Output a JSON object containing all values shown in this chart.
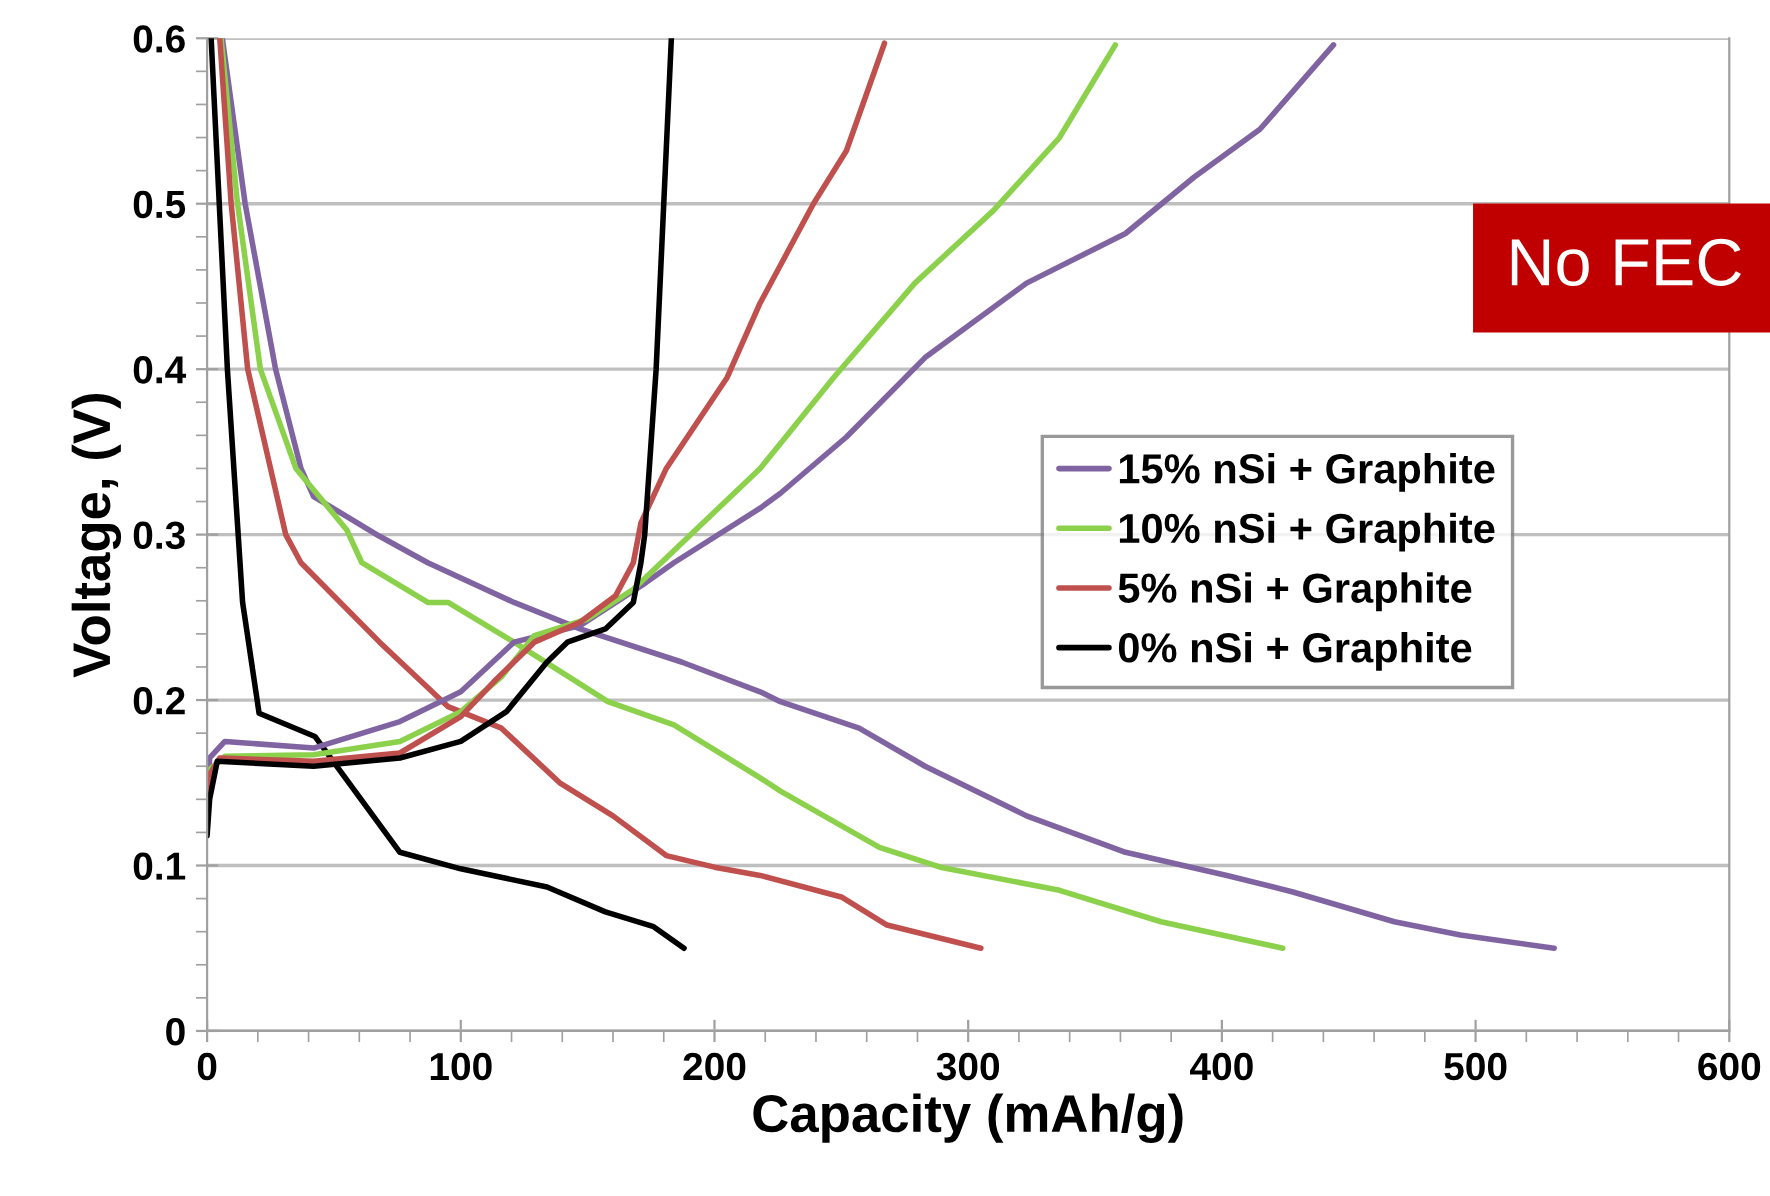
{
  "chart_data": {
    "type": "line",
    "xlabel": "Capacity (mAh/g)",
    "ylabel": "Voltage, (V)",
    "xlim": [
      0,
      600
    ],
    "ylim": [
      0,
      0.6
    ],
    "xticks": [
      0,
      100,
      200,
      300,
      400,
      500,
      600
    ],
    "yticks": [
      0,
      0.1,
      0.2,
      0.3,
      0.4,
      0.5,
      0.6
    ],
    "grid": "y",
    "legend": "right",
    "marker": "none",
    "line_style": "solid",
    "annotations": [
      "No FEC"
    ],
    "series": [
      {
        "name": "15% nSi + Graphite",
        "color": "#8064a2",
        "x": [
          6,
          15,
          27,
          37,
          42,
          68,
          87,
          121,
          147,
          187,
          218,
          226,
          257,
          283,
          323,
          362,
          402,
          428,
          468,
          494,
          531
        ],
        "values": [
          0.6,
          0.5,
          0.4,
          0.34,
          0.323,
          0.299,
          0.283,
          0.259,
          0.243,
          0.223,
          0.205,
          0.199,
          0.183,
          0.16,
          0.13,
          0.108,
          0.094,
          0.084,
          0.066,
          0.058,
          0.05
        ]
      },
      {
        "name": "10% nSi + Graphite",
        "color": "#8cd14b",
        "x": [
          5.5,
          12,
          21,
          35,
          55,
          61,
          87,
          95,
          121,
          158,
          184,
          218,
          226,
          265,
          289,
          336,
          376,
          424
        ],
        "values": [
          0.6,
          0.5,
          0.4,
          0.34,
          0.303,
          0.283,
          0.259,
          0.259,
          0.235,
          0.199,
          0.185,
          0.153,
          0.145,
          0.111,
          0.099,
          0.085,
          0.066,
          0.05
        ]
      },
      {
        "name": "5% nSi + Graphite",
        "color": "#c0504d",
        "x": [
          5,
          9.5,
          16,
          31,
          37,
          68,
          95,
          116,
          139,
          160,
          181,
          200,
          218,
          250,
          268,
          305
        ],
        "values": [
          0.6,
          0.5,
          0.4,
          0.3,
          0.283,
          0.235,
          0.196,
          0.183,
          0.15,
          0.13,
          0.106,
          0.099,
          0.094,
          0.081,
          0.064,
          0.05
        ]
      },
      {
        "name": "0% nSi + Graphite",
        "color": "#000000",
        "x": [
          1.6,
          8,
          14,
          20.5,
          42.5,
          76,
          100,
          134,
          157,
          176,
          188
        ],
        "values": [
          0.6,
          0.4,
          0.259,
          0.192,
          0.178,
          0.108,
          0.098,
          0.087,
          0.072,
          0.063,
          0.05
        ]
      },
      {
        "color": "#8064a2",
        "x": [
          0,
          1,
          7,
          42,
          76,
          100,
          121,
          147,
          173,
          184,
          218,
          226,
          252,
          283,
          323,
          362,
          389,
          415,
          444
        ],
        "values": [
          0.14,
          0.165,
          0.175,
          0.171,
          0.187,
          0.205,
          0.235,
          0.245,
          0.271,
          0.283,
          0.316,
          0.325,
          0.359,
          0.407,
          0.452,
          0.482,
          0.516,
          0.545,
          0.596
        ]
      },
      {
        "color": "#8cd14b",
        "x": [
          0,
          1,
          7,
          42,
          76,
          100,
          116,
          129,
          150,
          168,
          179,
          218,
          226,
          247,
          279,
          310,
          336,
          358
        ],
        "values": [
          0.13,
          0.158,
          0.166,
          0.167,
          0.175,
          0.193,
          0.214,
          0.239,
          0.249,
          0.267,
          0.283,
          0.34,
          0.355,
          0.395,
          0.452,
          0.496,
          0.54,
          0.596
        ]
      },
      {
        "color": "#c0504d",
        "x": [
          0,
          1,
          5,
          42,
          76,
          100,
          113,
          129,
          147,
          161,
          168,
          171,
          181,
          205,
          218,
          239,
          252,
          267
        ],
        "values": [
          0.135,
          0.155,
          0.165,
          0.163,
          0.168,
          0.19,
          0.211,
          0.235,
          0.247,
          0.263,
          0.283,
          0.307,
          0.34,
          0.395,
          0.44,
          0.5,
          0.532,
          0.597
        ]
      },
      {
        "color": "#000000",
        "x": [
          0,
          1,
          4,
          42,
          76,
          100,
          118,
          134,
          142,
          157,
          168,
          171,
          172.5,
          177,
          183
        ],
        "values": [
          0.118,
          0.14,
          0.163,
          0.16,
          0.165,
          0.175,
          0.193,
          0.223,
          0.235,
          0.243,
          0.259,
          0.283,
          0.3,
          0.4,
          0.6
        ]
      }
    ]
  }
}
